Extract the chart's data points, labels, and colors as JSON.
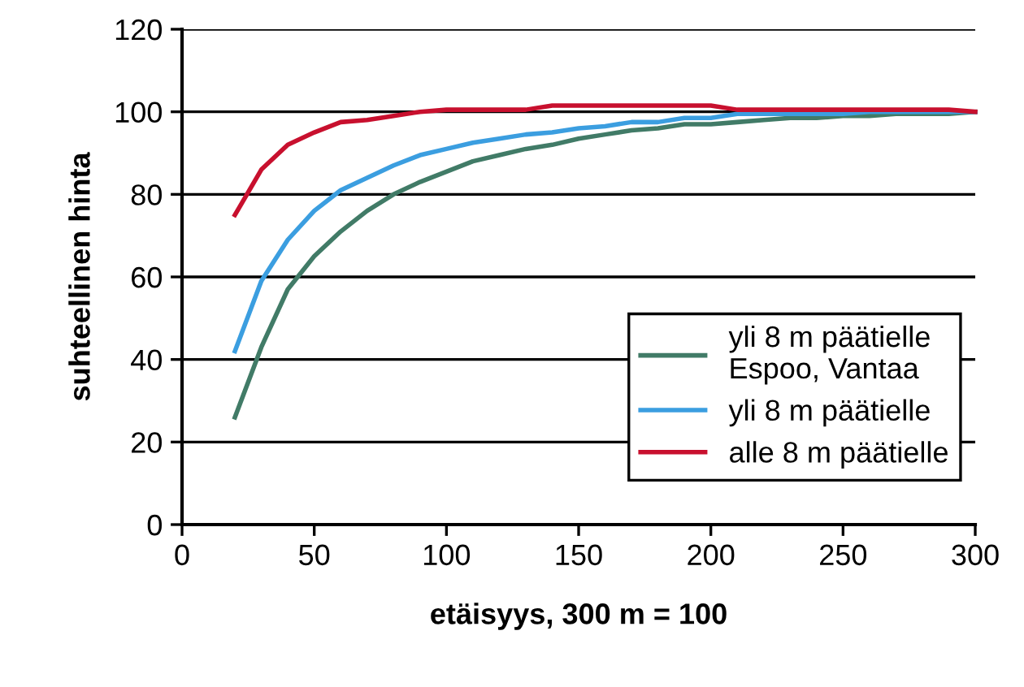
{
  "chart_data": {
    "type": "line",
    "xlabel": "etäisyys, 300 m = 100",
    "ylabel": "suhteellinen hinta",
    "x": [
      20,
      30,
      40,
      50,
      60,
      70,
      80,
      90,
      100,
      110,
      120,
      130,
      140,
      150,
      160,
      170,
      180,
      190,
      200,
      210,
      220,
      230,
      240,
      250,
      260,
      270,
      280,
      290,
      300
    ],
    "series": [
      {
        "name": "yli 8 m päätielle\nEspoo, Vantaa",
        "color": "#417b67",
        "values": [
          26,
          43,
          57,
          65,
          71,
          76,
          80,
          83,
          85.5,
          88,
          89.5,
          91,
          92,
          93.5,
          94.5,
          95.5,
          96,
          97,
          97,
          97.5,
          98,
          98.5,
          98.5,
          99,
          99,
          99.5,
          99.5,
          99.5,
          100
        ]
      },
      {
        "name": "yli 8 m päätielle",
        "color": "#3b9ee0",
        "values": [
          42,
          59,
          69,
          76,
          81,
          84,
          87,
          89.5,
          91,
          92.5,
          93.5,
          94.5,
          95,
          96,
          96.5,
          97.5,
          97.5,
          98.5,
          98.5,
          99.5,
          99.5,
          99.5,
          99.5,
          99.5,
          100,
          100,
          100,
          100,
          100
        ]
      },
      {
        "name": "alle 8 m päätielle",
        "color": "#c8102e",
        "values": [
          75,
          86,
          92,
          95,
          97.5,
          98,
          99,
          100,
          100.5,
          100.5,
          100.5,
          100.5,
          101.5,
          101.5,
          101.5,
          101.5,
          101.5,
          101.5,
          101.5,
          100.5,
          100.5,
          100.5,
          100.5,
          100.5,
          100.5,
          100.5,
          100.5,
          100.5,
          100
        ]
      }
    ],
    "xlim": [
      0,
      300
    ],
    "xticks": [
      0,
      50,
      100,
      150,
      200,
      250,
      300
    ],
    "ylim": [
      0,
      120
    ],
    "yticks": [
      0,
      20,
      40,
      60,
      80,
      100,
      120
    ],
    "grid": "y",
    "legend": "right",
    "marker": "none",
    "line_style": "solid"
  }
}
